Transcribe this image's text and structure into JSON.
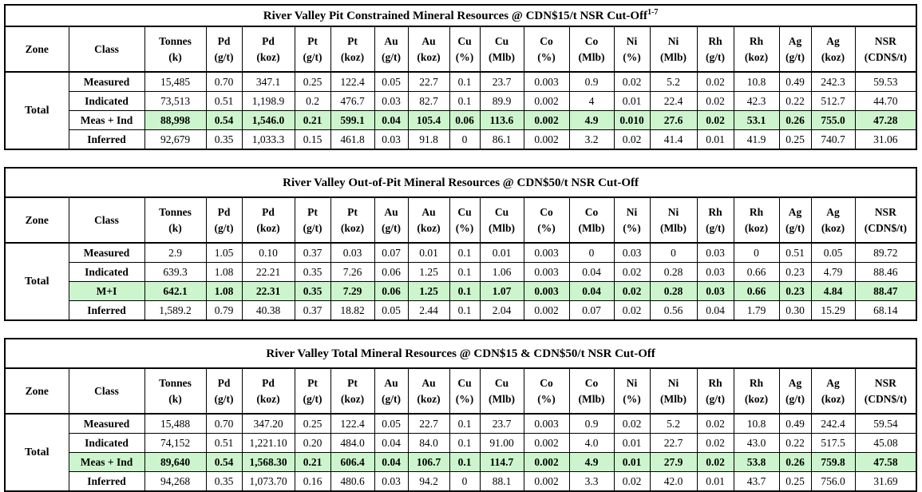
{
  "colors": {
    "highlight_green": "#cdf5cd",
    "border_black": "#000000"
  },
  "columns": [
    {
      "id": "zone",
      "label": "Zone",
      "unit": ""
    },
    {
      "id": "class",
      "label": "Class",
      "unit": ""
    },
    {
      "id": "tonnes",
      "label": "Tonnes",
      "unit": "(k)"
    },
    {
      "id": "pd-gpt",
      "label": "Pd",
      "unit": "(g/t)"
    },
    {
      "id": "pd-koz",
      "label": "Pd",
      "unit": "(koz)"
    },
    {
      "id": "pt-gpt",
      "label": "Pt",
      "unit": "(g/t)"
    },
    {
      "id": "pt-koz",
      "label": "Pt",
      "unit": "(koz)"
    },
    {
      "id": "au-gpt",
      "label": "Au",
      "unit": "(g/t)"
    },
    {
      "id": "au-koz",
      "label": "Au",
      "unit": "(koz)"
    },
    {
      "id": "cu-pct",
      "label": "Cu",
      "unit": "(%)"
    },
    {
      "id": "cu-mlb",
      "label": "Cu",
      "unit": "(Mlb)"
    },
    {
      "id": "co-pct",
      "label": "Co",
      "unit": "(%)"
    },
    {
      "id": "co-mlb",
      "label": "Co",
      "unit": "(Mlb)"
    },
    {
      "id": "ni-pct",
      "label": "Ni",
      "unit": "(%)"
    },
    {
      "id": "ni-mlb",
      "label": "Ni",
      "unit": "(Mlb)"
    },
    {
      "id": "rh-gpt",
      "label": "Rh",
      "unit": "(g/t)"
    },
    {
      "id": "rh-koz",
      "label": "Rh",
      "unit": "(koz)"
    },
    {
      "id": "ag-gpt",
      "label": "Ag",
      "unit": "(g/t)"
    },
    {
      "id": "ag-koz",
      "label": "Ag",
      "unit": "(koz)"
    },
    {
      "id": "nsr",
      "label": "NSR",
      "unit": "(CDN$/t)"
    }
  ],
  "tables": [
    {
      "title": "River Valley Pit Constrained Mineral Resources @ CDN$15/t NSR Cut-Off",
      "title_superscript": "1-7",
      "zone": "Total",
      "highlight_class_cell": false,
      "rows": [
        {
          "class": "Measured",
          "highlight": false,
          "values": [
            "15,485",
            "0.70",
            "347.1",
            "0.25",
            "122.4",
            "0.05",
            "22.7",
            "0.1",
            "23.7",
            "0.003",
            "0.9",
            "0.02",
            "5.2",
            "0.02",
            "10.8",
            "0.49",
            "242.3",
            "59.53"
          ]
        },
        {
          "class": "Indicated",
          "highlight": false,
          "values": [
            "73,513",
            "0.51",
            "1,198.9",
            "0.2",
            "476.7",
            "0.03",
            "82.7",
            "0.1",
            "89.9",
            "0.002",
            "4",
            "0.01",
            "22.4",
            "0.02",
            "42.3",
            "0.22",
            "512.7",
            "44.70"
          ]
        },
        {
          "class": "Meas + Ind",
          "highlight": true,
          "values": [
            "88,998",
            "0.54",
            "1,546.0",
            "0.21",
            "599.1",
            "0.04",
            "105.4",
            "0.06",
            "113.6",
            "0.002",
            "4.9",
            "0.010",
            "27.6",
            "0.02",
            "53.1",
            "0.26",
            "755.0",
            "47.28"
          ]
        },
        {
          "class": "Inferred",
          "highlight": false,
          "values": [
            "92,679",
            "0.35",
            "1,033.3",
            "0.15",
            "461.8",
            "0.03",
            "91.8",
            "0",
            "86.1",
            "0.002",
            "3.2",
            "0.02",
            "41.4",
            "0.01",
            "41.9",
            "0.25",
            "740.7",
            "31.06"
          ]
        }
      ]
    },
    {
      "title": "River Valley Out-of-Pit Mineral Resources @ CDN$50/t NSR Cut-Off",
      "title_superscript": "",
      "zone": "Total",
      "highlight_class_cell": true,
      "rows": [
        {
          "class": "Measured",
          "highlight": false,
          "values": [
            "2.9",
            "1.05",
            "0.10",
            "0.37",
            "0.03",
            "0.07",
            "0.01",
            "0.1",
            "0.01",
            "0.003",
            "0",
            "0.03",
            "0",
            "0.03",
            "0",
            "0.51",
            "0.05",
            "89.72"
          ]
        },
        {
          "class": "Indicated",
          "highlight": false,
          "values": [
            "639.3",
            "1.08",
            "22.21",
            "0.35",
            "7.26",
            "0.06",
            "1.25",
            "0.1",
            "1.06",
            "0.003",
            "0.04",
            "0.02",
            "0.28",
            "0.03",
            "0.66",
            "0.23",
            "4.79",
            "88.46"
          ]
        },
        {
          "class": "M+I",
          "highlight": true,
          "values": [
            "642.1",
            "1.08",
            "22.31",
            "0.35",
            "7.29",
            "0.06",
            "1.25",
            "0.1",
            "1.07",
            "0.003",
            "0.04",
            "0.02",
            "0.28",
            "0.03",
            "0.66",
            "0.23",
            "4.84",
            "88.47"
          ]
        },
        {
          "class": "Inferred",
          "highlight": false,
          "values": [
            "1,589.2",
            "0.79",
            "40.38",
            "0.37",
            "18.82",
            "0.05",
            "2.44",
            "0.1",
            "2.04",
            "0.002",
            "0.07",
            "0.02",
            "0.56",
            "0.04",
            "1.79",
            "0.30",
            "15.29",
            "68.14"
          ]
        }
      ]
    },
    {
      "title": "River Valley Total Mineral Resources @ CDN$15 & CDN$50/t NSR Cut-Off",
      "title_superscript": "",
      "zone": "Total",
      "highlight_class_cell": true,
      "rows": [
        {
          "class": "Measured",
          "highlight": false,
          "values": [
            "15,488",
            "0.70",
            "347.20",
            "0.25",
            "122.4",
            "0.05",
            "22.7",
            "0.1",
            "23.7",
            "0.003",
            "0.9",
            "0.02",
            "5.2",
            "0.02",
            "10.8",
            "0.49",
            "242.4",
            "59.54"
          ]
        },
        {
          "class": "Indicated",
          "highlight": false,
          "values": [
            "74,152",
            "0.51",
            "1,221.10",
            "0.20",
            "484.0",
            "0.04",
            "84.0",
            "0.1",
            "91.00",
            "0.002",
            "4.0",
            "0.01",
            "22.7",
            "0.02",
            "43.0",
            "0.22",
            "517.5",
            "45.08"
          ]
        },
        {
          "class": "Meas + Ind",
          "highlight": true,
          "values": [
            "89,640",
            "0.54",
            "1,568.30",
            "0.21",
            "606.4",
            "0.04",
            "106.7",
            "0.1",
            "114.7",
            "0.002",
            "4.9",
            "0.01",
            "27.9",
            "0.02",
            "53.8",
            "0.26",
            "759.8",
            "47.58"
          ]
        },
        {
          "class": "Inferred",
          "highlight": false,
          "values": [
            "94,268",
            "0.35",
            "1,073.70",
            "0.16",
            "480.6",
            "0.03",
            "94.2",
            "0",
            "88.1",
            "0.002",
            "3.3",
            "0.02",
            "42.0",
            "0.01",
            "43.7",
            "0.25",
            "756.0",
            "31.69"
          ]
        }
      ]
    }
  ]
}
